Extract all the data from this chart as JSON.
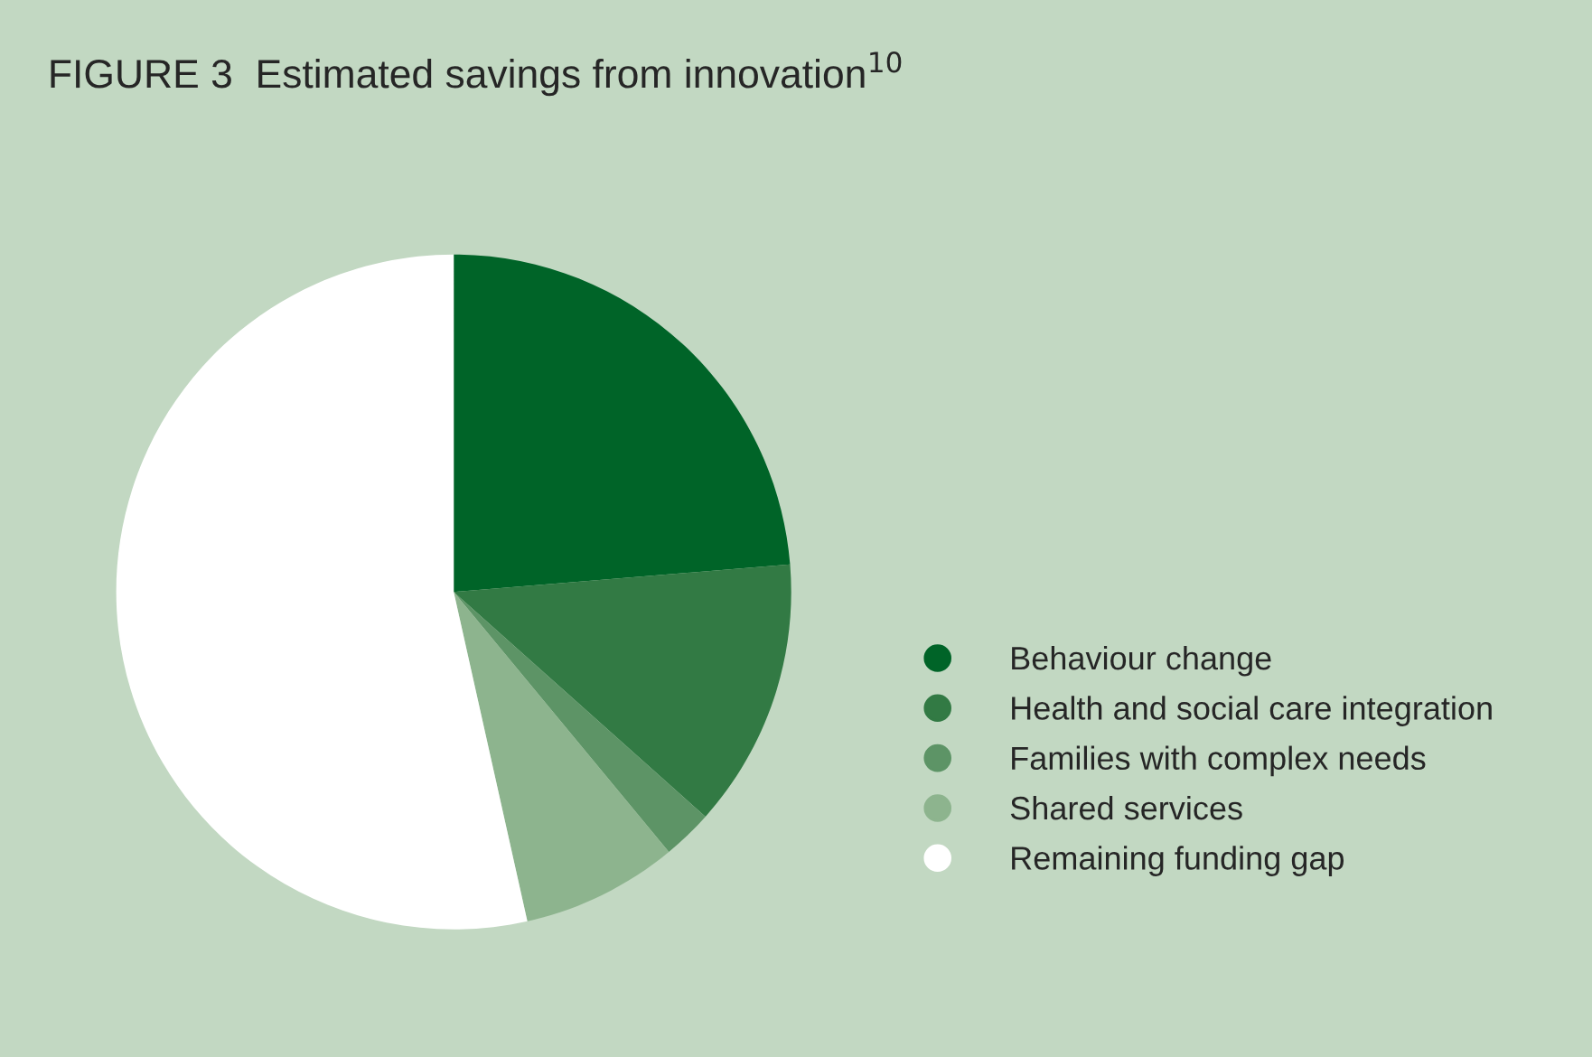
{
  "chart_data": {
    "type": "pie",
    "title": "FIGURE 3  Estimated savings from innovation$^{10}$",
    "categories": [
      "Behaviour change",
      "Health and social care integration",
      "Families with complex needs",
      "Shared services",
      "Remaining funding gap"
    ],
    "values": [
      23.7,
      12.9,
      2.4,
      7.5,
      53.5
    ],
    "colors": [
      "#006428",
      "#327a44",
      "#5d9466",
      "#8db48e",
      "#ffffff"
    ],
    "legend": "right"
  }
}
